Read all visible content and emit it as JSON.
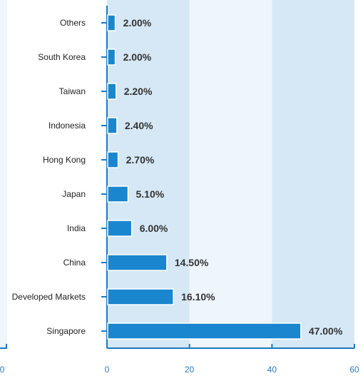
{
  "chart_data": {
    "type": "bar",
    "orientation": "horizontal",
    "categories": [
      "Singapore",
      "Developed Markets",
      "China",
      "India",
      "Japan",
      "Hong Kong",
      "Indonesia",
      "Taiwan",
      "South Korea",
      "Others"
    ],
    "values": [
      47.0,
      16.1,
      14.5,
      6.0,
      5.1,
      2.7,
      2.4,
      2.2,
      2.0,
      2.0
    ],
    "data_labels": [
      "47.00%",
      "16.10%",
      "14.50%",
      "6.00%",
      "5.10%",
      "2.70%",
      "2.40%",
      "2.20%",
      "2.00%",
      "2.00%"
    ],
    "xlim": [
      0,
      60
    ],
    "xticks": [
      0,
      20,
      40,
      60
    ],
    "xtick_labels": [
      "0",
      "20",
      "40",
      "60"
    ],
    "title": "",
    "xlabel": "",
    "ylabel": "",
    "grid": "alternating vertical bands",
    "legend": "none",
    "colors": {
      "bar": "#1a86cf",
      "bar_edge": "#ffffff",
      "band_dark": "#d6e8f5",
      "band_light": "#eef5fb",
      "axis": "#1a7ac4",
      "tick_text": "#2b7cc4",
      "category_text": "#222222",
      "label_text": "#333333"
    }
  }
}
